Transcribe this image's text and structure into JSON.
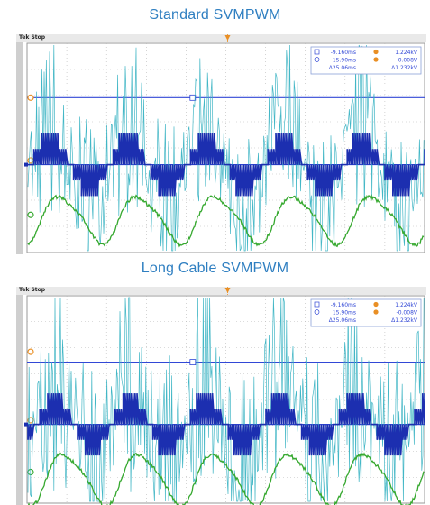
{
  "titles": {
    "top": "Standard SVMPWM",
    "bottom": "Long Cable SVMPWM"
  },
  "scopes": [
    {
      "brand": "Tek Stop",
      "readout": {
        "row1_left": "-9.160ms",
        "row1_right": "1.224kV",
        "row2_left": "15.90ms",
        "row2_right": "-0.008V",
        "row3_left": "Δ25.06ms",
        "row3_right": "Δ1.232kV"
      }
    },
    {
      "brand": "Tek Stop",
      "readout": {
        "row1_left": "-9.160ms",
        "row1_right": "1.224kV",
        "row2_left": "15.90ms",
        "row2_right": "-0.008V",
        "row3_left": "Δ25.06ms",
        "row3_right": "Δ1.232kV"
      }
    }
  ],
  "colors": {
    "title": "#2f7fc1",
    "cyan_trace": "#39b3c3",
    "blue_trace": "#1c2fb0",
    "green_trace": "#35a82e",
    "cursor_line": "#3248d6",
    "marker_orange": "#e98f24"
  }
}
